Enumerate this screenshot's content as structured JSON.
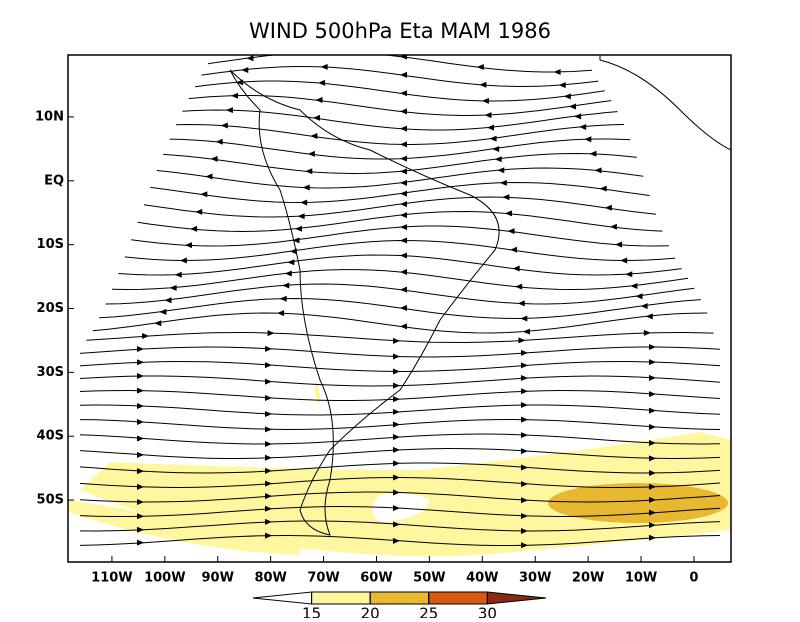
{
  "chart_data": {
    "type": "map",
    "title": "WIND 500hPa Eta MAM 1986",
    "xlim": [
      -118.3,
      7.0
    ],
    "ylim": [
      -59.7,
      19.7
    ],
    "xticks": [
      {
        "value": -110,
        "label": "110W"
      },
      {
        "value": -100,
        "label": "100W"
      },
      {
        "value": -90,
        "label": "90W"
      },
      {
        "value": -80,
        "label": "80W"
      },
      {
        "value": -70,
        "label": "70W"
      },
      {
        "value": -60,
        "label": "60W"
      },
      {
        "value": -50,
        "label": "50W"
      },
      {
        "value": -40,
        "label": "40W"
      },
      {
        "value": -30,
        "label": "30W"
      },
      {
        "value": -20,
        "label": "20W"
      },
      {
        "value": -10,
        "label": "10W"
      },
      {
        "value": 0,
        "label": "0"
      }
    ],
    "yticks": [
      {
        "value": 10,
        "label": "10N"
      },
      {
        "value": 0,
        "label": "EQ"
      },
      {
        "value": -10,
        "label": "10S"
      },
      {
        "value": -20,
        "label": "20S"
      },
      {
        "value": -30,
        "label": "30S"
      },
      {
        "value": -40,
        "label": "40S"
      },
      {
        "value": -50,
        "label": "50S"
      }
    ],
    "colorbar": {
      "levels": [
        15,
        20,
        25,
        30
      ],
      "colors": [
        "#ffffff",
        "#fff7a0",
        "#e8b830",
        "#d85a10",
        "#8a2a10"
      ]
    }
  }
}
